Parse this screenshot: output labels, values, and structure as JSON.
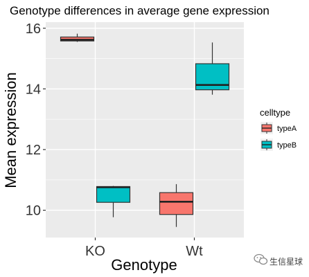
{
  "chart_data": {
    "type": "boxplot",
    "title": "Genotype differences in average gene expression",
    "xlabel": "Genotype",
    "ylabel": "Mean expression",
    "categories": [
      "KO",
      "Wt"
    ],
    "ylim": [
      9.1,
      16.2
    ],
    "yticks": [
      10,
      12,
      14,
      16
    ],
    "legend": {
      "title": "celltype",
      "position": "right"
    },
    "series": [
      {
        "name": "typeA",
        "color": "#F8766D",
        "boxes": [
          {
            "category": "KO",
            "min": 15.55,
            "q1": 15.58,
            "median": 15.62,
            "q3": 15.71,
            "max": 15.82
          },
          {
            "category": "Wt",
            "min": 9.45,
            "q1": 9.86,
            "median": 10.28,
            "q3": 10.58,
            "max": 10.86
          }
        ]
      },
      {
        "name": "typeB",
        "color": "#00BFC4",
        "boxes": [
          {
            "category": "KO",
            "min": 9.77,
            "q1": 10.26,
            "median": 10.76,
            "q3": 10.78,
            "max": 10.8
          },
          {
            "category": "Wt",
            "min": 13.81,
            "q1": 13.97,
            "median": 14.13,
            "q3": 14.83,
            "max": 15.53
          }
        ]
      }
    ],
    "grid": true,
    "panel_background": "#EBEBEB"
  },
  "watermark": {
    "text": "生信星球",
    "icon": "wechat-icon"
  }
}
